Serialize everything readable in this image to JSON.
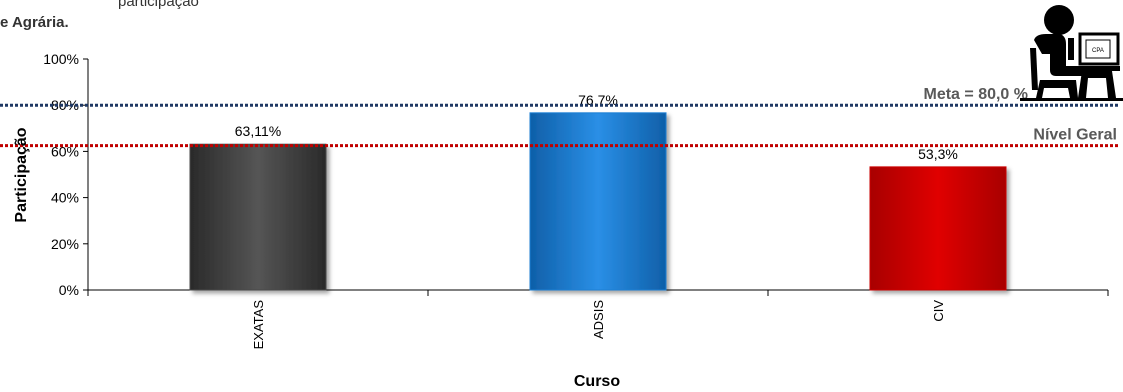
{
  "title_fragment": "participação",
  "title_line2": "e Agrária.",
  "chart_data": {
    "type": "bar",
    "categories": [
      "EXATAS",
      "ADSIS",
      "CIV"
    ],
    "values": [
      63.11,
      76.7,
      53.3
    ],
    "value_labels": [
      "63,11%",
      "76,7%",
      "53,3%"
    ],
    "bar_colors": [
      "#4a4a4a",
      "#1a7fd4",
      "#cc0000"
    ],
    "ylim": [
      0,
      100
    ],
    "yticks": [
      0,
      20,
      40,
      60,
      80,
      100
    ],
    "ytick_labels": [
      "0%",
      "20%",
      "40%",
      "60%",
      "80%",
      "100%"
    ],
    "xlabel": "Curso",
    "ylabel": "Participação",
    "reference_lines": [
      {
        "label": "Meta = 80,0 %",
        "value": 80,
        "color": "#1f3864"
      },
      {
        "label": "Nível Geral",
        "value": 62.5,
        "color": "#c00000"
      }
    ],
    "grid": false,
    "icon": "person-at-computer-icon"
  }
}
